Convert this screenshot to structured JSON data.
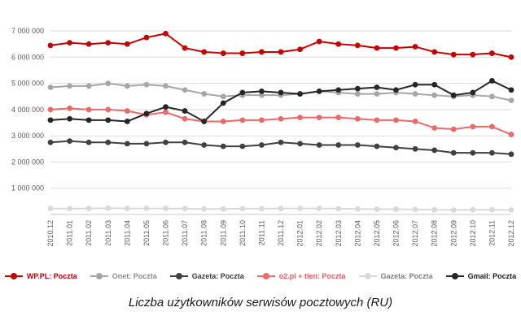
{
  "chart_data": {
    "type": "line",
    "title": "Liczba użytkowników serwisów pocztowych (RU)",
    "xlabel": "",
    "ylabel": "",
    "ylim": [
      0,
      7500000
    ],
    "grid": "horizontal",
    "legend_position": "bottom",
    "x": [
      "2010.12",
      "2011.01",
      "2011.02",
      "2011.03",
      "2011.04",
      "2011.05",
      "2011.06",
      "2011.07",
      "2011.08",
      "2011.09",
      "2011.10",
      "2011.11",
      "2011.12",
      "2012.01",
      "2012.02",
      "2012.03",
      "2012.04",
      "2012.05",
      "2012.06",
      "2012.07",
      "2012.08",
      "2012.09",
      "2012.10",
      "2012.11",
      "2012.12"
    ],
    "y_ticks": [
      "1 000 000",
      "2 000 000",
      "3 000 000",
      "4 000 000",
      "5 000 000",
      "6 000 000",
      "7 000 000"
    ],
    "series": [
      {
        "name": "WP.PL: Poczta",
        "color": "#c00000",
        "label_color": "#b30000",
        "values": [
          6450000,
          6550000,
          6500000,
          6550000,
          6500000,
          6750000,
          6900000,
          6350000,
          6200000,
          6150000,
          6150000,
          6200000,
          6200000,
          6300000,
          6600000,
          6500000,
          6450000,
          6350000,
          6350000,
          6400000,
          6200000,
          6100000,
          6100000,
          6150000,
          6000000
        ]
      },
      {
        "name": "Onet: Poczta",
        "color": "#a6a6a6",
        "label_color": "#8c8c8c",
        "values": [
          4850000,
          4900000,
          4900000,
          5000000,
          4900000,
          4950000,
          4900000,
          4750000,
          4600000,
          4500000,
          4550000,
          4550000,
          4550000,
          4600000,
          4700000,
          4650000,
          4600000,
          4600000,
          4650000,
          4600000,
          4550000,
          4500000,
          4550000,
          4500000,
          4350000
        ]
      },
      {
        "name": "Gazeta: Poczta",
        "color": "#404040",
        "label_color": "#3a3a3a",
        "values": [
          2750000,
          2800000,
          2750000,
          2750000,
          2700000,
          2700000,
          2750000,
          2750000,
          2650000,
          2600000,
          2600000,
          2650000,
          2750000,
          2700000,
          2650000,
          2650000,
          2650000,
          2600000,
          2550000,
          2500000,
          2450000,
          2350000,
          2350000,
          2350000,
          2300000
        ]
      },
      {
        "name": "o2.pl + tlen: Poczta",
        "color": "#e86a6a",
        "label_color": "#df5f5f",
        "values": [
          4000000,
          4050000,
          4000000,
          4000000,
          3950000,
          3800000,
          3900000,
          3650000,
          3550000,
          3550000,
          3600000,
          3600000,
          3650000,
          3700000,
          3700000,
          3700000,
          3650000,
          3600000,
          3600000,
          3550000,
          3300000,
          3250000,
          3350000,
          3350000,
          3050000
        ]
      },
      {
        "name": "Gazeta: Poczta",
        "color": "#d9d9d9",
        "label_color": "#7f7f7f",
        "values": [
          230000,
          220000,
          230000,
          240000,
          230000,
          230000,
          230000,
          220000,
          210000,
          210000,
          220000,
          220000,
          230000,
          230000,
          230000,
          220000,
          210000,
          200000,
          200000,
          190000,
          180000,
          170000,
          180000,
          180000,
          170000
        ]
      },
      {
        "name": "Gmail: Poczta",
        "color": "#262626",
        "label_color": "#1a1a1a",
        "values": [
          3600000,
          3650000,
          3600000,
          3600000,
          3550000,
          3850000,
          4100000,
          3950000,
          3550000,
          4250000,
          4650000,
          4700000,
          4650000,
          4600000,
          4700000,
          4750000,
          4800000,
          4850000,
          4750000,
          4950000,
          4950000,
          4550000,
          4650000,
          5100000,
          4750000
        ]
      }
    ]
  }
}
